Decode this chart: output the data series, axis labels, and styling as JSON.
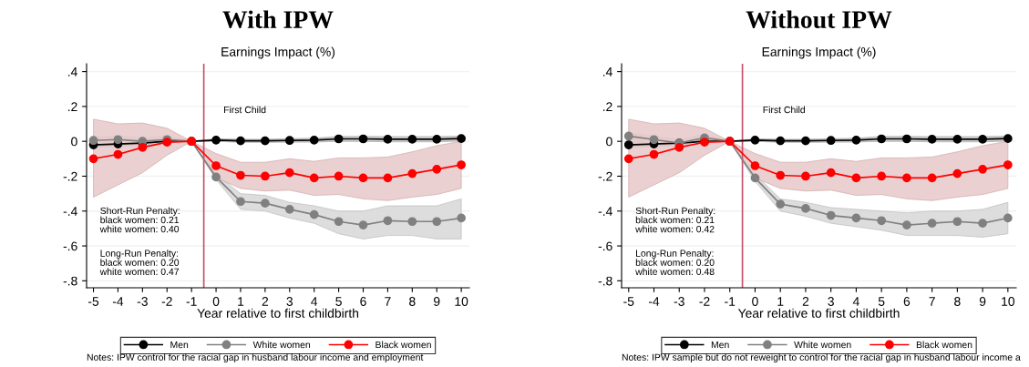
{
  "chart_data": [
    {
      "type": "line",
      "title": "With IPW",
      "subtitle": "Earnings Impact (%)",
      "xlabel": "Year relative to first childbirth",
      "x": [
        -5,
        -4,
        -3,
        -2,
        -1,
        0,
        1,
        2,
        3,
        4,
        5,
        6,
        7,
        8,
        9,
        10
      ],
      "series": [
        {
          "name": "Men",
          "color": "#000000",
          "values": [
            -0.02,
            -0.015,
            -0.01,
            0,
            0,
            0.007,
            0.003,
            0.003,
            0.005,
            0.007,
            0.014,
            0.014,
            0.012,
            0.012,
            0.012,
            0.016
          ],
          "lower": [
            -0.035,
            -0.03,
            -0.025,
            -0.01,
            0,
            0,
            -0.006,
            -0.006,
            -0.005,
            -0.004,
            0,
            0,
            -0.003,
            -0.003,
            -0.003,
            0.002
          ],
          "upper": [
            -0.005,
            0,
            0.005,
            0.01,
            0,
            0.015,
            0.012,
            0.012,
            0.015,
            0.018,
            0.028,
            0.028,
            0.027,
            0.027,
            0.027,
            0.03
          ]
        },
        {
          "name": "White women",
          "color": "#808080",
          "values": [
            0.005,
            0.01,
            0,
            0.01,
            0,
            -0.205,
            -0.345,
            -0.355,
            -0.39,
            -0.42,
            -0.46,
            -0.48,
            -0.455,
            -0.46,
            -0.46,
            -0.44
          ],
          "lower": [
            -0.015,
            -0.01,
            -0.02,
            -0.01,
            0,
            -0.22,
            -0.39,
            -0.4,
            -0.44,
            -0.47,
            -0.53,
            -0.56,
            -0.54,
            -0.54,
            -0.56,
            -0.56
          ],
          "upper": [
            0.025,
            0.03,
            0.02,
            0.03,
            0,
            -0.19,
            -0.3,
            -0.31,
            -0.35,
            -0.37,
            -0.4,
            -0.4,
            -0.37,
            -0.37,
            -0.37,
            -0.33
          ]
        },
        {
          "name": "Black women",
          "color": "#ff0000",
          "values": [
            -0.1,
            -0.075,
            -0.035,
            -0.005,
            0,
            -0.14,
            -0.195,
            -0.2,
            -0.18,
            -0.21,
            -0.2,
            -0.21,
            -0.21,
            -0.185,
            -0.16,
            -0.135
          ],
          "lower": [
            -0.32,
            -0.25,
            -0.18,
            -0.08,
            0,
            -0.21,
            -0.27,
            -0.285,
            -0.28,
            -0.31,
            -0.305,
            -0.33,
            -0.34,
            -0.32,
            -0.305,
            -0.27
          ],
          "upper": [
            0.127,
            0.1,
            0.105,
            0.075,
            0,
            -0.07,
            -0.12,
            -0.12,
            -0.1,
            -0.115,
            -0.095,
            -0.095,
            -0.09,
            -0.06,
            -0.025,
            0
          ]
        }
      ],
      "xlim": [
        -5.28,
        10.33
      ],
      "xticks": [
        -5,
        -4,
        -3,
        -2,
        -1,
        0,
        1,
        2,
        3,
        4,
        5,
        6,
        7,
        8,
        9,
        10
      ],
      "ylim": [
        -0.84,
        0.445
      ],
      "yticks": [
        {
          "value": 0.4,
          "label": ".4"
        },
        {
          "value": 0.2,
          "label": ".2"
        },
        0,
        {
          "value": -0.2,
          "label": "-.2"
        },
        {
          "value": -0.4,
          "label": "-.4"
        },
        {
          "value": -0.6,
          "label": "-.6"
        },
        {
          "value": -0.8,
          "label": "-.8"
        }
      ],
      "ref_lines": [
        {
          "axis": "x",
          "value": -0.5,
          "label": "First Child",
          "color": "#c8506e"
        }
      ],
      "annotations": [
        "Short-Run Penalty:\nblack women: 0.21\nwhite women: 0.40",
        "Long-Run Penalty:\nblack women: 0.20\nwhite women: 0.47",
        "Notes: IPW control for the racial gap in husband labour income and employment"
      ],
      "grid": "y",
      "legend": "bottom",
      "marker": "circle",
      "line_style": "solid"
    },
    {
      "type": "line",
      "title": "Without IPW",
      "subtitle": "Earnings Impact (%)",
      "xlabel": "Year relative to first childbirth",
      "x": [
        -5,
        -4,
        -3,
        -2,
        -1,
        0,
        1,
        2,
        3,
        4,
        5,
        6,
        7,
        8,
        9,
        10
      ],
      "series": [
        {
          "name": "Men",
          "color": "#000000",
          "values": [
            -0.02,
            -0.015,
            -0.01,
            0,
            0,
            0.007,
            0.003,
            0.003,
            0.005,
            0.007,
            0.014,
            0.014,
            0.012,
            0.012,
            0.012,
            0.016
          ],
          "lower": [
            -0.035,
            -0.03,
            -0.025,
            -0.01,
            0,
            0,
            -0.006,
            -0.006,
            -0.005,
            -0.004,
            0,
            0,
            -0.003,
            -0.003,
            -0.003,
            0.002
          ],
          "upper": [
            -0.005,
            0,
            0.005,
            0.01,
            0,
            0.015,
            0.012,
            0.012,
            0.015,
            0.018,
            0.028,
            0.028,
            0.027,
            0.027,
            0.027,
            0.03
          ]
        },
        {
          "name": "White women",
          "color": "#808080",
          "values": [
            0.03,
            0.01,
            -0.01,
            0.02,
            0,
            -0.21,
            -0.36,
            -0.385,
            -0.425,
            -0.44,
            -0.455,
            -0.48,
            -0.47,
            -0.46,
            -0.47,
            -0.44
          ],
          "lower": [
            0.01,
            -0.01,
            -0.03,
            0,
            0,
            -0.23,
            -0.4,
            -0.43,
            -0.47,
            -0.49,
            -0.51,
            -0.54,
            -0.54,
            -0.54,
            -0.55,
            -0.53
          ],
          "upper": [
            0.05,
            0.03,
            0.01,
            0.04,
            0,
            -0.19,
            -0.33,
            -0.35,
            -0.38,
            -0.39,
            -0.4,
            -0.41,
            -0.4,
            -0.4,
            -0.39,
            -0.35
          ]
        },
        {
          "name": "Black women",
          "color": "#ff0000",
          "values": [
            -0.1,
            -0.075,
            -0.035,
            -0.005,
            0,
            -0.14,
            -0.195,
            -0.2,
            -0.18,
            -0.21,
            -0.2,
            -0.21,
            -0.21,
            -0.185,
            -0.16,
            -0.135
          ],
          "lower": [
            -0.32,
            -0.25,
            -0.18,
            -0.08,
            0,
            -0.21,
            -0.27,
            -0.285,
            -0.28,
            -0.31,
            -0.305,
            -0.33,
            -0.34,
            -0.32,
            -0.305,
            -0.27
          ],
          "upper": [
            0.127,
            0.1,
            0.105,
            0.075,
            0,
            -0.07,
            -0.12,
            -0.12,
            -0.1,
            -0.115,
            -0.095,
            -0.095,
            -0.09,
            -0.06,
            -0.025,
            0
          ]
        }
      ],
      "xlim": [
        -5.28,
        10.33
      ],
      "xticks": [
        -5,
        -4,
        -3,
        -2,
        -1,
        0,
        1,
        2,
        3,
        4,
        5,
        6,
        7,
        8,
        9,
        10
      ],
      "ylim": [
        -0.84,
        0.445
      ],
      "yticks": [
        {
          "value": 0.4,
          "label": ".4"
        },
        {
          "value": 0.2,
          "label": ".2"
        },
        0,
        {
          "value": -0.2,
          "label": "-.2"
        },
        {
          "value": -0.4,
          "label": "-.4"
        },
        {
          "value": -0.6,
          "label": "-.6"
        },
        {
          "value": -0.8,
          "label": "-.8"
        }
      ],
      "ref_lines": [
        {
          "axis": "x",
          "value": -0.5,
          "label": "First Child",
          "color": "#c8506e"
        }
      ],
      "annotations": [
        "Short-Run Penalty:\nblack women: 0.21\nwhite women: 0.42",
        "Long-Run Penalty:\nblack women: 0.20\nwhite women: 0.48",
        "Notes: IPW sample but do not reweight to control for the racial gap in husband labour income a"
      ],
      "grid": "y",
      "legend": "bottom",
      "marker": "circle",
      "line_style": "solid"
    }
  ]
}
